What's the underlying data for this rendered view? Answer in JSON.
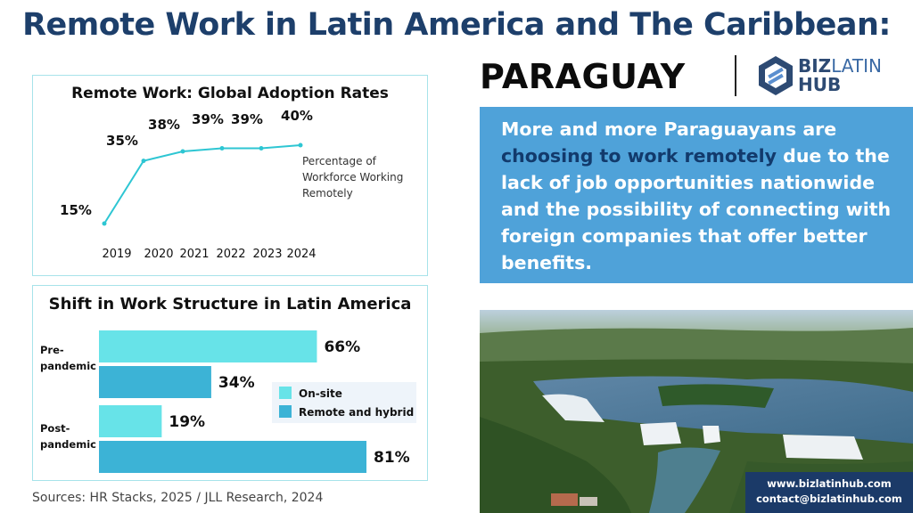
{
  "header": {
    "title": "Remote Work in Latin America and The Caribbean:",
    "country": "PARAGUAY",
    "logo": {
      "text_biz": "BIZ",
      "text_latin": "LATIN",
      "text_hub": "HUB"
    }
  },
  "chart_data": [
    {
      "type": "line",
      "title": "Remote Work: Global Adoption Rates",
      "x": [
        "2019",
        "2020",
        "2021",
        "2022",
        "2023",
        "2024"
      ],
      "series": [
        {
          "values": [
            15,
            35,
            38,
            39,
            39,
            40
          ]
        }
      ],
      "data_labels": [
        "15%",
        "35%",
        "38%",
        "39%",
        "39%",
        "40%"
      ],
      "annotation": [
        "Percentage of",
        "Workforce Working",
        "Remotely"
      ],
      "ylim": [
        0,
        45
      ],
      "color": "#2ec6d3",
      "grid": false
    },
    {
      "type": "bar",
      "orientation": "horizontal",
      "title": "Shift in Work Structure in Latin America",
      "categories": [
        [
          "Pre-",
          "pandemic"
        ],
        [
          "Post-",
          "pandemic"
        ]
      ],
      "series": [
        {
          "name": "On-site",
          "values": [
            66,
            19
          ],
          "labels": [
            "66%",
            "19%"
          ],
          "color": "#67e3e8"
        },
        {
          "name": "Remote and hybrid",
          "values": [
            34,
            81
          ],
          "labels": [
            "34%",
            "81%"
          ],
          "color": "#3cb3d6"
        }
      ],
      "xlim": [
        0,
        81
      ],
      "legend": "right",
      "grid": false
    }
  ],
  "sources": "Sources: HR Stacks, 2025 /  JLL Research, 2024",
  "infobox": {
    "before": "More and more Paraguayans are ",
    "highlight": "choosing to work remotely",
    "after": " due to the lack of job opportunities nationwide and the possibility of connecting with foreign companies that offer better benefits."
  },
  "contact": {
    "website": "www.bizlatinhub.com",
    "email": "contact@bizlatinhub.com"
  },
  "colors": {
    "title": "#1d3f6b",
    "infobox_bg": "#4fa2d9",
    "infobox_highlight": "#123a6c",
    "contact_bg": "#1b3a68",
    "panel_border": "#a7e3ea"
  }
}
